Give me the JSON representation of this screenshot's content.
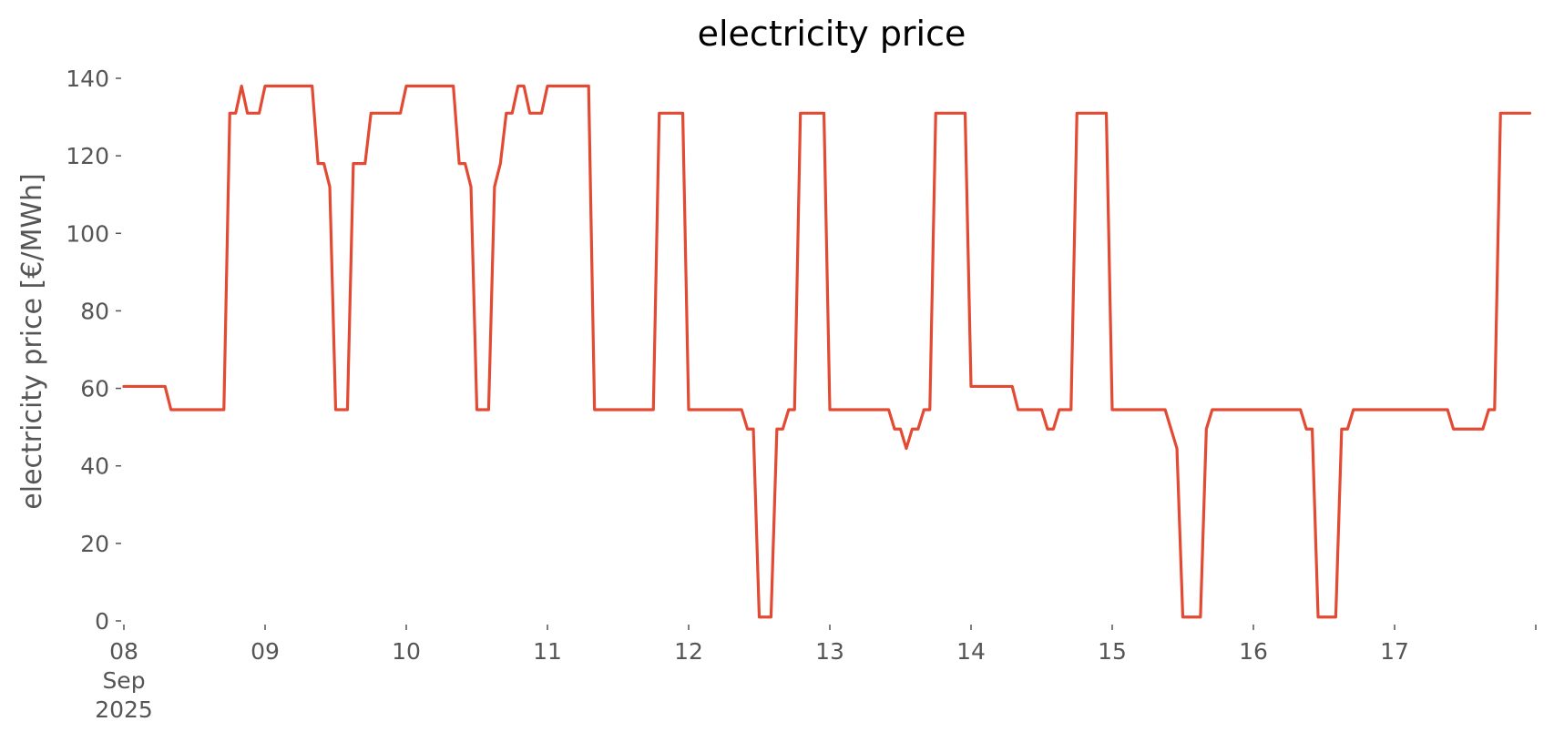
{
  "chart_data": {
    "type": "line",
    "title": "electricity price",
    "xlabel": "",
    "ylabel": "electricity price [€/MWh]",
    "grid": false,
    "ylim": [
      0,
      140
    ],
    "xlim": [
      "2025-09-08 00:00",
      "2025-09-18 00:00"
    ],
    "y_ticks": [
      "0",
      "20",
      "40",
      "60",
      "80",
      "100",
      "120",
      "140"
    ],
    "x_ticks": [
      {
        "lines": [
          "08",
          "Sep",
          "2025"
        ]
      },
      {
        "lines": [
          "09"
        ]
      },
      {
        "lines": [
          "10"
        ]
      },
      {
        "lines": [
          "11"
        ]
      },
      {
        "lines": [
          "12"
        ]
      },
      {
        "lines": [
          "13"
        ]
      },
      {
        "lines": [
          "14"
        ]
      },
      {
        "lines": [
          "15"
        ]
      },
      {
        "lines": [
          "16"
        ]
      },
      {
        "lines": [
          "17"
        ]
      }
    ],
    "line_color": "#E24A33",
    "series": [
      {
        "points": [
          [
            "2025-09-08 00:00",
            60.5
          ],
          [
            "2025-09-08 07:00",
            60.5
          ],
          [
            "2025-09-08 08:00",
            54.5
          ],
          [
            "2025-09-08 17:00",
            54.5
          ],
          [
            "2025-09-08 18:00",
            131
          ],
          [
            "2025-09-08 19:00",
            131
          ],
          [
            "2025-09-08 20:00",
            138
          ],
          [
            "2025-09-08 21:00",
            131
          ],
          [
            "2025-09-08 23:00",
            131
          ],
          [
            "2025-09-09 00:00",
            138
          ],
          [
            "2025-09-09 08:00",
            138
          ],
          [
            "2025-09-09 09:00",
            118
          ],
          [
            "2025-09-09 10:00",
            118
          ],
          [
            "2025-09-09 11:00",
            112
          ],
          [
            "2025-09-09 12:00",
            54.5
          ],
          [
            "2025-09-09 14:00",
            54.5
          ],
          [
            "2025-09-09 15:00",
            118
          ],
          [
            "2025-09-09 17:00",
            118
          ],
          [
            "2025-09-09 18:00",
            131
          ],
          [
            "2025-09-09 23:00",
            131
          ],
          [
            "2025-09-10 00:00",
            138
          ],
          [
            "2025-09-10 08:00",
            138
          ],
          [
            "2025-09-10 09:00",
            118
          ],
          [
            "2025-09-10 10:00",
            118
          ],
          [
            "2025-09-10 11:00",
            112
          ],
          [
            "2025-09-10 12:00",
            54.5
          ],
          [
            "2025-09-10 14:00",
            54.5
          ],
          [
            "2025-09-10 15:00",
            112
          ],
          [
            "2025-09-10 16:00",
            118
          ],
          [
            "2025-09-10 17:00",
            131
          ],
          [
            "2025-09-10 18:00",
            131
          ],
          [
            "2025-09-10 19:00",
            138
          ],
          [
            "2025-09-10 20:00",
            138
          ],
          [
            "2025-09-10 21:00",
            131
          ],
          [
            "2025-09-10 23:00",
            131
          ],
          [
            "2025-09-11 00:00",
            138
          ],
          [
            "2025-09-11 07:00",
            138
          ],
          [
            "2025-09-11 08:00",
            54.5
          ],
          [
            "2025-09-11 18:00",
            54.5
          ],
          [
            "2025-09-11 19:00",
            131
          ],
          [
            "2025-09-11 23:00",
            131
          ],
          [
            "2025-09-12 00:00",
            54.5
          ],
          [
            "2025-09-12 09:00",
            54.5
          ],
          [
            "2025-09-12 10:00",
            49.5
          ],
          [
            "2025-09-12 11:00",
            49.5
          ],
          [
            "2025-09-12 12:00",
            1
          ],
          [
            "2025-09-12 14:00",
            1
          ],
          [
            "2025-09-12 15:00",
            49.5
          ],
          [
            "2025-09-12 16:00",
            49.5
          ],
          [
            "2025-09-12 17:00",
            54.5
          ],
          [
            "2025-09-12 18:00",
            54.5
          ],
          [
            "2025-09-12 19:00",
            131
          ],
          [
            "2025-09-12 23:00",
            131
          ],
          [
            "2025-09-13 00:00",
            54.5
          ],
          [
            "2025-09-13 10:00",
            54.5
          ],
          [
            "2025-09-13 11:00",
            49.5
          ],
          [
            "2025-09-13 12:00",
            49.5
          ],
          [
            "2025-09-13 13:00",
            44.5
          ],
          [
            "2025-09-13 14:00",
            49.5
          ],
          [
            "2025-09-13 15:00",
            49.5
          ],
          [
            "2025-09-13 16:00",
            54.5
          ],
          [
            "2025-09-13 17:00",
            54.5
          ],
          [
            "2025-09-13 18:00",
            131
          ],
          [
            "2025-09-13 23:00",
            131
          ],
          [
            "2025-09-14 00:00",
            60.5
          ],
          [
            "2025-09-14 07:00",
            60.5
          ],
          [
            "2025-09-14 08:00",
            54.5
          ],
          [
            "2025-09-14 12:00",
            54.5
          ],
          [
            "2025-09-14 13:00",
            49.5
          ],
          [
            "2025-09-14 14:00",
            49.5
          ],
          [
            "2025-09-14 15:00",
            54.5
          ],
          [
            "2025-09-14 17:00",
            54.5
          ],
          [
            "2025-09-14 18:00",
            131
          ],
          [
            "2025-09-14 23:00",
            131
          ],
          [
            "2025-09-15 00:00",
            54.5
          ],
          [
            "2025-09-15 09:00",
            54.5
          ],
          [
            "2025-09-15 11:00",
            44.5
          ],
          [
            "2025-09-15 12:00",
            1
          ],
          [
            "2025-09-15 15:00",
            1
          ],
          [
            "2025-09-15 16:00",
            49.5
          ],
          [
            "2025-09-15 17:00",
            54.5
          ],
          [
            "2025-09-16 08:00",
            54.5
          ],
          [
            "2025-09-16 09:00",
            49.5
          ],
          [
            "2025-09-16 10:00",
            49.5
          ],
          [
            "2025-09-16 11:00",
            1
          ],
          [
            "2025-09-16 14:00",
            1
          ],
          [
            "2025-09-16 15:00",
            49.5
          ],
          [
            "2025-09-16 16:00",
            49.5
          ],
          [
            "2025-09-16 17:00",
            54.5
          ],
          [
            "2025-09-17 09:00",
            54.5
          ],
          [
            "2025-09-17 10:00",
            49.5
          ],
          [
            "2025-09-17 15:00",
            49.5
          ],
          [
            "2025-09-17 16:00",
            54.5
          ],
          [
            "2025-09-17 17:00",
            54.5
          ],
          [
            "2025-09-17 18:00",
            131
          ],
          [
            "2025-09-17 23:00",
            131
          ]
        ]
      }
    ]
  }
}
